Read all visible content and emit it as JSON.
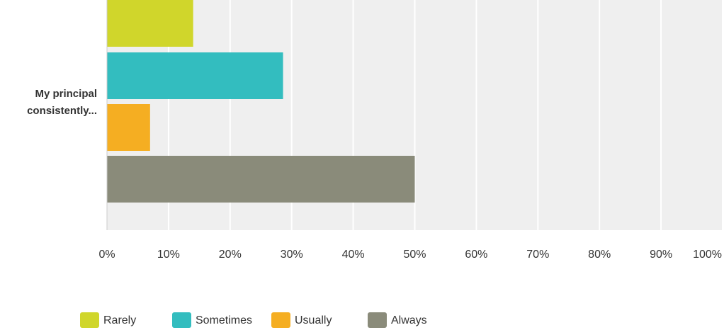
{
  "chart_data": {
    "type": "bar",
    "orientation": "horizontal",
    "categories": [
      "My principal consistently..."
    ],
    "category_label_lines": [
      "My principal",
      "consistently..."
    ],
    "series": [
      {
        "name": "Rarely",
        "values": [
          14
        ],
        "color": "#d0d62b"
      },
      {
        "name": "Sometimes",
        "values": [
          28.6
        ],
        "color": "#33bdbf"
      },
      {
        "name": "Usually",
        "values": [
          7
        ],
        "color": "#f5ae22"
      },
      {
        "name": "Always",
        "values": [
          50
        ],
        "color": "#8a8b7a"
      }
    ],
    "xlim": [
      0,
      100
    ],
    "xticks": [
      "0%",
      "10%",
      "20%",
      "30%",
      "40%",
      "50%",
      "60%",
      "70%",
      "80%",
      "90%",
      "100%"
    ],
    "title": "",
    "xlabel": "",
    "ylabel": "",
    "grid": true,
    "legend_position": "bottom",
    "colors": {
      "plot_background": "#efefef",
      "gridline": "#ffffff",
      "axis": "#cccccc"
    }
  }
}
